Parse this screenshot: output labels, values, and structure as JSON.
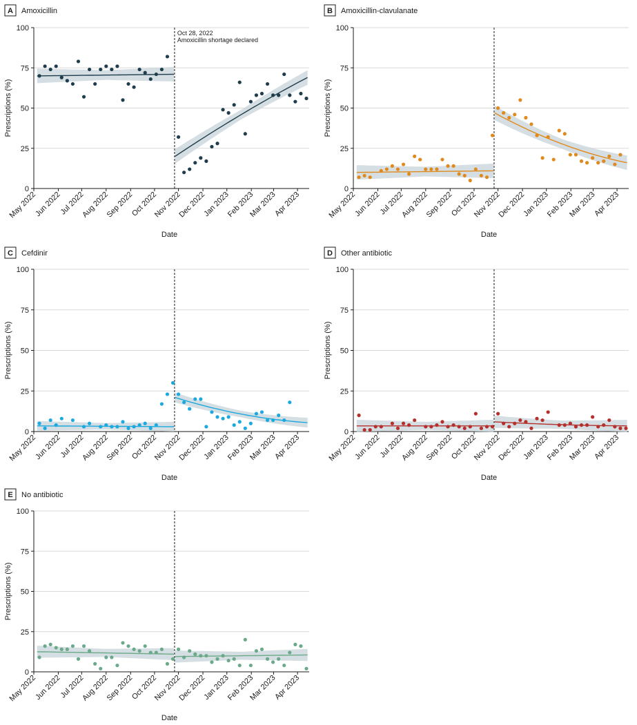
{
  "chart_data": {
    "type": "scatter",
    "shared": {
      "xlabel": "Date",
      "ylabel": "Prescriptions (%)",
      "ylim": [
        0,
        100
      ],
      "yticks": [
        0,
        25,
        50,
        75,
        100
      ],
      "xlim": [
        0,
        49.5
      ],
      "xtick_positions": [
        0,
        4.4,
        8.6,
        13.0,
        17.4,
        21.7,
        26.0,
        30.4,
        34.7,
        39.1,
        43.1,
        47.4
      ],
      "xtick_labels": [
        "May 2022",
        "Jun 2022",
        "Jul 2022",
        "Aug 2022",
        "Sep 2022",
        "Oct 2022",
        "Nov 2022",
        "Dec 2022",
        "Jan 2023",
        "Feb 2023",
        "Mar 2023",
        "Apr 2023"
      ],
      "shortage_week": 25.3,
      "grid": "horizontal",
      "x": [
        1,
        2,
        3,
        4,
        5,
        6,
        7,
        8,
        9,
        10,
        11,
        12,
        13,
        14,
        15,
        16,
        17,
        18,
        19,
        20,
        21,
        22,
        23,
        24,
        25,
        26,
        27,
        28,
        29,
        30,
        31,
        32,
        33,
        34,
        35,
        36,
        37,
        38,
        39,
        40,
        41,
        42,
        43,
        44,
        45,
        46,
        47,
        48,
        49
      ]
    },
    "panels": [
      {
        "letter": "A",
        "title": "Amoxicillin",
        "color": "#1f3d4c",
        "annotation": [
          "Oct 28, 2022",
          "Amoxicillin shortage declared"
        ],
        "values": [
          70,
          76,
          74,
          76,
          69,
          67,
          65,
          79,
          57,
          74,
          65,
          74,
          76,
          74,
          76,
          55,
          65,
          63,
          74,
          72,
          68,
          71,
          74,
          82,
          null,
          32,
          10,
          12,
          16,
          19,
          17,
          26,
          28,
          49,
          47,
          52,
          66,
          34,
          54,
          58,
          59,
          65,
          58,
          58,
          71,
          58,
          54,
          59,
          56
        ],
        "pre_fit": [
          70,
          71
        ],
        "post_fit": [
          20,
          69
        ],
        "post_curve": -1.5,
        "ci": 3
      },
      {
        "letter": "B",
        "title": "Amoxicillin-clavulanate",
        "color": "#e08a1e",
        "annotation": null,
        "values": [
          7,
          8,
          7,
          null,
          11,
          12,
          14,
          12,
          15,
          9,
          20,
          18,
          12,
          12,
          12,
          18,
          14,
          14,
          9,
          8,
          5,
          12,
          8,
          7,
          33,
          50,
          47,
          44,
          46,
          55,
          44,
          40,
          33,
          19,
          32,
          18,
          36,
          34,
          21,
          21,
          17,
          16,
          19,
          16,
          17,
          20,
          15,
          21,
          null
        ],
        "pre_fit": [
          10,
          11
        ],
        "post_fit": [
          47,
          16
        ],
        "post_curve": 3.5,
        "ci": 3
      },
      {
        "letter": "C",
        "title": "Cefdinir",
        "color": "#1ba9e0",
        "annotation": null,
        "values": [
          5,
          2,
          7,
          4,
          8,
          null,
          7,
          null,
          3,
          5,
          null,
          3,
          4,
          3,
          3,
          6,
          2,
          3,
          4,
          5,
          2,
          4,
          17,
          23,
          30,
          23,
          18,
          14,
          20,
          20,
          3,
          12,
          9,
          8,
          9,
          4,
          6,
          2,
          5,
          11,
          12,
          7,
          7,
          10,
          7,
          18,
          null,
          null,
          null
        ],
        "pre_fit": [
          3.5,
          3
        ],
        "post_fit": [
          21,
          5.5
        ],
        "post_curve": 2.5,
        "ci": 2
      },
      {
        "letter": "D",
        "title": "Other antibiotic",
        "color": "#b5302c",
        "annotation": null,
        "values": [
          10,
          1,
          1,
          3,
          3,
          null,
          5,
          2,
          5,
          4,
          7,
          null,
          3,
          3,
          4,
          6,
          3,
          4,
          3,
          2,
          3,
          11,
          2,
          3,
          3,
          11,
          5,
          3,
          5,
          7,
          6,
          2,
          8,
          7,
          12,
          null,
          4,
          4,
          5,
          3,
          4,
          4,
          9,
          3,
          4,
          7,
          3,
          2,
          2
        ],
        "pre_fit": [
          3.5,
          3.5
        ],
        "post_fit": [
          6,
          3.5
        ],
        "post_curve": 0.5,
        "ci": 2.5
      },
      {
        "letter": "E",
        "title": "No antibiotic",
        "color": "#6aaa8a",
        "annotation": null,
        "values": [
          9,
          16,
          17,
          15,
          14,
          14,
          16,
          8,
          16,
          13,
          5,
          2,
          9,
          9,
          4,
          18,
          16,
          14,
          13,
          16,
          12,
          12,
          14,
          5,
          8,
          14,
          9,
          13,
          11,
          10,
          10,
          6,
          8,
          10,
          7,
          8,
          4,
          20,
          4,
          13,
          14,
          8,
          6,
          8,
          4,
          12,
          17,
          16,
          2
        ],
        "pre_fit": [
          12.5,
          11
        ],
        "post_fit": [
          9.5,
          10.5
        ],
        "post_curve": 0,
        "ci": 2.5
      }
    ]
  }
}
